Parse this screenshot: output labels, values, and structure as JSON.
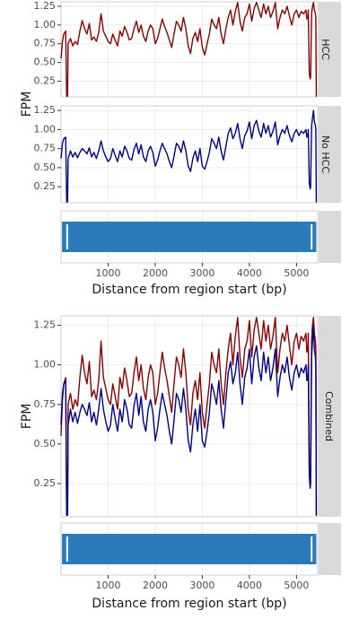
{
  "chart_data": [
    {
      "type": "line",
      "panel": "top-coverage",
      "ylabel": "FPM",
      "xlim": [
        0,
        5450
      ],
      "ylim": [
        0.04,
        1.31
      ],
      "yticks": [
        0.25,
        0.5,
        0.75,
        1.0,
        1.25
      ],
      "ytick_labels": [
        "0.25",
        "0.50",
        "0.75",
        "1.00",
        "1.25"
      ],
      "grid": true,
      "facets": [
        {
          "label": "HCC",
          "color": "#8b0000",
          "x": [
            0,
            30,
            60,
            100,
            120,
            140,
            150,
            200,
            250,
            300,
            350,
            400,
            450,
            500,
            550,
            600,
            650,
            700,
            750,
            800,
            850,
            900,
            950,
            1000,
            1050,
            1100,
            1150,
            1200,
            1250,
            1300,
            1350,
            1400,
            1450,
            1500,
            1550,
            1600,
            1650,
            1700,
            1750,
            1800,
            1850,
            1900,
            1950,
            2000,
            2050,
            2100,
            2150,
            2200,
            2250,
            2300,
            2350,
            2400,
            2450,
            2500,
            2550,
            2600,
            2650,
            2700,
            2750,
            2800,
            2850,
            2900,
            2950,
            3000,
            3050,
            3100,
            3150,
            3200,
            3250,
            3300,
            3350,
            3400,
            3450,
            3500,
            3550,
            3600,
            3650,
            3700,
            3750,
            3800,
            3850,
            3900,
            3950,
            4000,
            4050,
            4100,
            4150,
            4200,
            4250,
            4300,
            4350,
            4400,
            4450,
            4500,
            4550,
            4600,
            4650,
            4700,
            4750,
            4800,
            4850,
            4900,
            4950,
            5000,
            5050,
            5100,
            5150,
            5200,
            5220,
            5240,
            5250,
            5270,
            5290,
            5300,
            5320,
            5340,
            5360,
            5380,
            5400,
            5410,
            5420,
            5430
          ],
          "y": [
            0.55,
            0.78,
            0.88,
            0.92,
            0.05,
            0.05,
            0.75,
            0.82,
            0.72,
            0.78,
            0.74,
            0.92,
            1.06,
            0.95,
            0.88,
            1.02,
            0.8,
            0.84,
            0.78,
            0.9,
            1.15,
            0.92,
            0.85,
            0.78,
            0.75,
            0.88,
            0.8,
            0.72,
            0.92,
            0.85,
            0.98,
            0.9,
            0.8,
            0.82,
            0.95,
            1.05,
            0.9,
            1.0,
            0.85,
            0.78,
            0.92,
            1.0,
            0.95,
            0.75,
            0.82,
            0.95,
            1.08,
            0.98,
            0.9,
            0.8,
            0.7,
            0.88,
            1.05,
            1.0,
            0.92,
            1.1,
            0.95,
            0.72,
            0.62,
            0.82,
            0.9,
            0.78,
            0.95,
            0.7,
            0.6,
            0.75,
            0.88,
            1.08,
            1.0,
            0.95,
            1.1,
            0.88,
            0.75,
            0.95,
            1.1,
            1.2,
            1.0,
            1.18,
            1.3,
            1.05,
            0.92,
            1.1,
            1.15,
            1.28,
            1.05,
            1.22,
            1.3,
            1.2,
            1.1,
            1.28,
            1.15,
            1.25,
            1.1,
            1.18,
            1.3,
            0.95,
            1.1,
            1.2,
            1.15,
            1.25,
            1.12,
            1.0,
            1.15,
            1.2,
            1.1,
            1.18,
            1.15,
            1.2,
            1.08,
            1.1,
            1.2,
            0.35,
            0.28,
            0.3,
            1.15,
            1.25,
            1.3,
            1.2,
            1.15,
            1.1,
            0.05,
            0.05
          ]
        },
        {
          "label": "No HCC",
          "color": "#00008b",
          "x": [
            0,
            30,
            60,
            100,
            120,
            140,
            150,
            200,
            250,
            300,
            350,
            400,
            450,
            500,
            550,
            600,
            650,
            700,
            750,
            800,
            850,
            900,
            950,
            1000,
            1050,
            1100,
            1150,
            1200,
            1250,
            1300,
            1350,
            1400,
            1450,
            1500,
            1550,
            1600,
            1650,
            1700,
            1750,
            1800,
            1850,
            1900,
            1950,
            2000,
            2050,
            2100,
            2150,
            2200,
            2250,
            2300,
            2350,
            2400,
            2450,
            2500,
            2550,
            2600,
            2650,
            2700,
            2750,
            2800,
            2850,
            2900,
            2950,
            3000,
            3050,
            3100,
            3150,
            3200,
            3250,
            3300,
            3350,
            3400,
            3450,
            3500,
            3550,
            3600,
            3650,
            3700,
            3750,
            3800,
            3850,
            3900,
            3950,
            4000,
            4050,
            4100,
            4150,
            4200,
            4250,
            4300,
            4350,
            4400,
            4450,
            4500,
            4550,
            4600,
            4650,
            4700,
            4750,
            4800,
            4850,
            4900,
            4950,
            5000,
            5050,
            5100,
            5150,
            5200,
            5220,
            5240,
            5250,
            5270,
            5290,
            5300,
            5320,
            5340,
            5360,
            5380,
            5400,
            5410,
            5420,
            5430
          ],
          "y": [
            0.62,
            0.82,
            0.88,
            0.9,
            0.05,
            0.05,
            0.62,
            0.72,
            0.64,
            0.7,
            0.63,
            0.7,
            0.75,
            0.72,
            0.68,
            0.76,
            0.64,
            0.7,
            0.62,
            0.72,
            0.85,
            0.72,
            0.64,
            0.58,
            0.62,
            0.75,
            0.66,
            0.58,
            0.72,
            0.64,
            0.78,
            0.72,
            0.62,
            0.6,
            0.74,
            0.82,
            0.68,
            0.8,
            0.64,
            0.58,
            0.72,
            0.78,
            0.7,
            0.52,
            0.6,
            0.72,
            0.82,
            0.75,
            0.68,
            0.58,
            0.5,
            0.65,
            0.82,
            0.78,
            0.7,
            0.85,
            0.72,
            0.52,
            0.45,
            0.62,
            0.72,
            0.58,
            0.75,
            0.52,
            0.48,
            0.58,
            0.7,
            0.88,
            0.82,
            0.75,
            0.9,
            0.72,
            0.6,
            0.78,
            0.95,
            1.02,
            0.88,
            0.95,
            1.08,
            0.88,
            0.75,
            0.92,
            0.98,
            1.1,
            0.88,
            1.05,
            1.12,
            0.98,
            0.9,
            1.08,
            0.95,
            1.05,
            0.9,
            0.98,
            1.1,
            0.8,
            0.92,
            1.0,
            0.95,
            1.05,
            0.92,
            0.84,
            0.95,
            1.0,
            0.92,
            0.98,
            0.95,
            1.0,
            0.9,
            0.92,
            1.0,
            0.3,
            0.22,
            0.25,
            1.05,
            1.15,
            1.25,
            1.1,
            1.05,
            1.0,
            0.05,
            0.05
          ]
        }
      ]
    },
    {
      "type": "line",
      "panel": "bottom-combined",
      "ylabel": "FPM",
      "strip_label": "Combined",
      "xlim": [
        0,
        5450
      ],
      "ylim": [
        0.04,
        1.31
      ],
      "yticks": [
        0.25,
        0.5,
        0.75,
        1.0,
        1.25
      ],
      "ytick_labels": [
        "0.25",
        "0.50",
        "0.75",
        "1.00",
        "1.25"
      ],
      "grid": true,
      "overlay_series": [
        "HCC",
        "No HCC"
      ]
    },
    {
      "type": "bar",
      "panel": "region-track",
      "xlabel": "Distance from region start (bp)",
      "xlim": [
        0,
        5450
      ],
      "xticks": [
        1000,
        2000,
        3000,
        4000,
        5000
      ],
      "xtick_labels": [
        "1000",
        "2000",
        "3000",
        "4000",
        "5000"
      ],
      "color": "#2b7bba",
      "segments": [
        [
          20,
          5420
        ]
      ],
      "gaps": [
        130,
        5320
      ]
    }
  ]
}
